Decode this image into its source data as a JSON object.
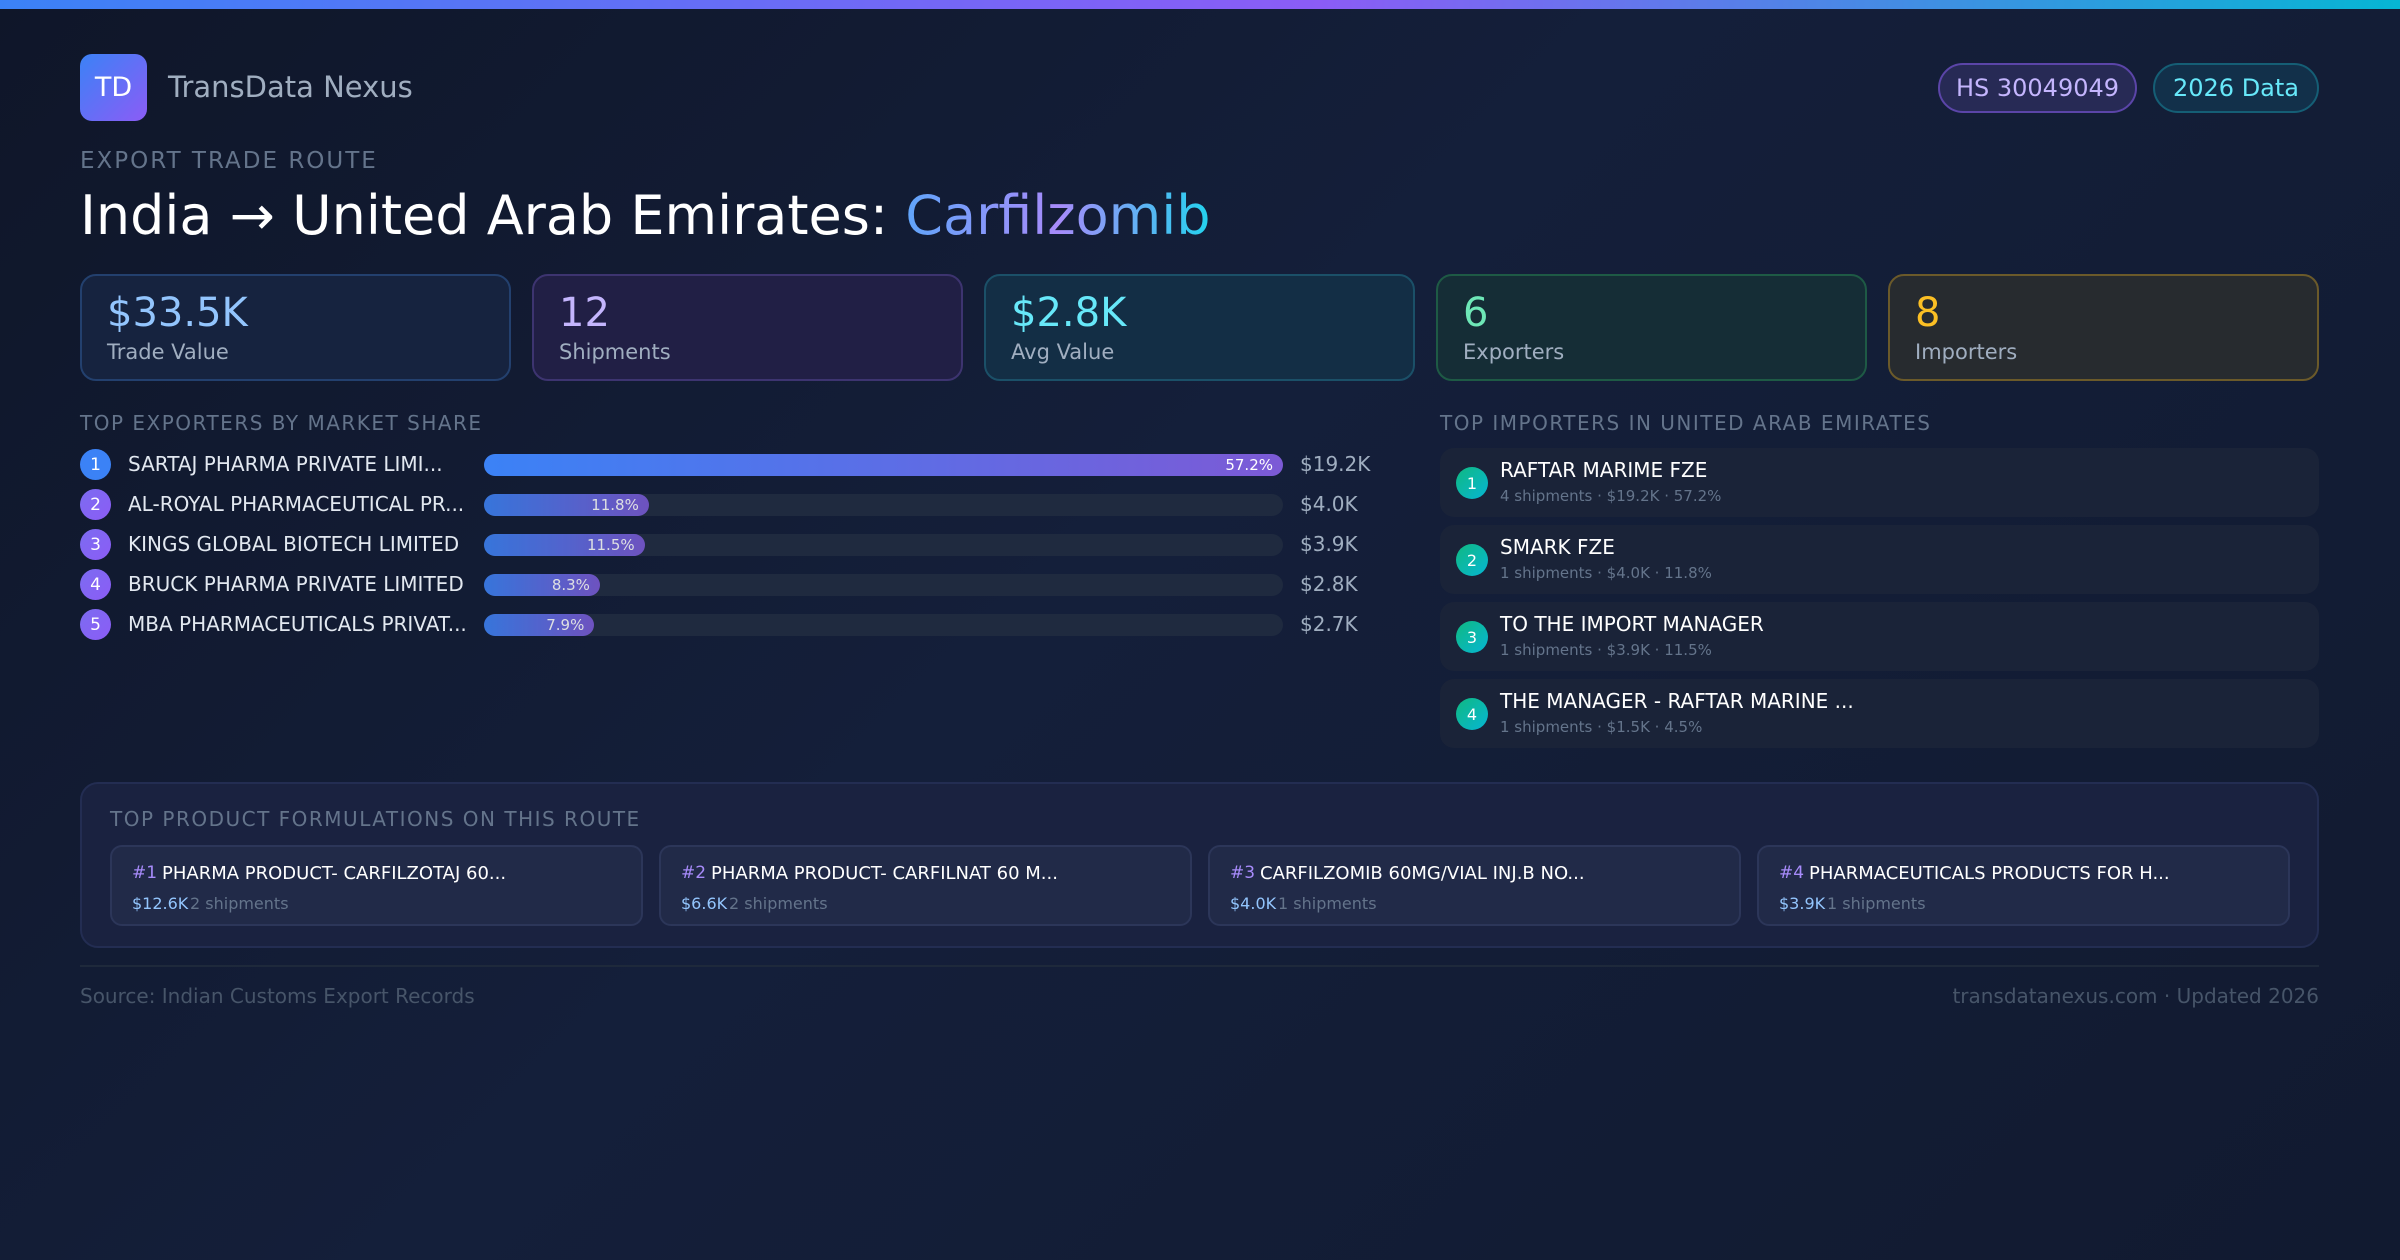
{
  "brand": {
    "logo": "TD",
    "name": "TransData Nexus"
  },
  "badges": {
    "hs": "HS 30049049",
    "year": "2026 Data"
  },
  "header": {
    "eyebrow": "EXPORT TRADE ROUTE",
    "title_route": "India → United Arab Emirates: ",
    "title_product": "Carfilzomib"
  },
  "stats": [
    {
      "value": "$33.5K",
      "label": "Trade Value",
      "color": "#93c5fd"
    },
    {
      "value": "12",
      "label": "Shipments",
      "color": "#c4b5fd"
    },
    {
      "value": "$2.8K",
      "label": "Avg Value",
      "color": "#67e8f9"
    },
    {
      "value": "6",
      "label": "Exporters",
      "color": "#6ee7b7"
    },
    {
      "value": "8",
      "label": "Importers",
      "color": "#fbbf24"
    }
  ],
  "exporters": {
    "title": "TOP EXPORTERS BY MARKET SHARE",
    "items": [
      {
        "rank": "1",
        "name": "SARTAJ PHARMA PRIVATE LIMI...",
        "share": 57.2,
        "share_label": "57.2%",
        "value": "$19.2K"
      },
      {
        "rank": "2",
        "name": "AL-ROYAL PHARMACEUTICAL PR...",
        "share": 11.8,
        "share_label": "11.8%",
        "value": "$4.0K"
      },
      {
        "rank": "3",
        "name": "KINGS GLOBAL BIOTECH LIMITED",
        "share": 11.5,
        "share_label": "11.5%",
        "value": "$3.9K"
      },
      {
        "rank": "4",
        "name": "BRUCK PHARMA PRIVATE LIMITED",
        "share": 8.3,
        "share_label": "8.3%",
        "value": "$2.8K"
      },
      {
        "rank": "5",
        "name": "MBA PHARMACEUTICALS PRIVAT...",
        "share": 7.9,
        "share_label": "7.9%",
        "value": "$2.7K"
      }
    ]
  },
  "importers": {
    "title": "TOP IMPORTERS IN UNITED ARAB EMIRATES",
    "items": [
      {
        "rank": "1",
        "name": "RAFTAR MARIME FZE",
        "detail": "4 shipments · $19.2K · 57.2%"
      },
      {
        "rank": "2",
        "name": "SMARK FZE",
        "detail": "1 shipments · $4.0K · 11.8%"
      },
      {
        "rank": "3",
        "name": "TO THE IMPORT MANAGER",
        "detail": "1 shipments · $3.9K · 11.5%"
      },
      {
        "rank": "4",
        "name": "THE MANAGER - RAFTAR MARINE ...",
        "detail": "1 shipments · $1.5K · 4.5%"
      }
    ]
  },
  "formulations": {
    "title": "TOP PRODUCT FORMULATIONS ON THIS ROUTE",
    "items": [
      {
        "rank": "#1",
        "name": "PHARMA PRODUCT- CARFILZOTAJ 60...",
        "value": "$12.6K",
        "shipments": "2 shipments"
      },
      {
        "rank": "#2",
        "name": "PHARMA PRODUCT- CARFILNAT 60 M...",
        "value": "$6.6K",
        "shipments": "2 shipments"
      },
      {
        "rank": "#3",
        "name": "CARFILZOMIB 60MG/VIAL INJ.B NO...",
        "value": "$4.0K",
        "shipments": "1 shipments"
      },
      {
        "rank": "#4",
        "name": "PHARMACEUTICALS PRODUCTS FOR H...",
        "value": "$3.9K",
        "shipments": "1 shipments"
      }
    ]
  },
  "footer": {
    "source": "Source: Indian Customs Export Records",
    "site": "transdatanexus.com · Updated 2026"
  }
}
